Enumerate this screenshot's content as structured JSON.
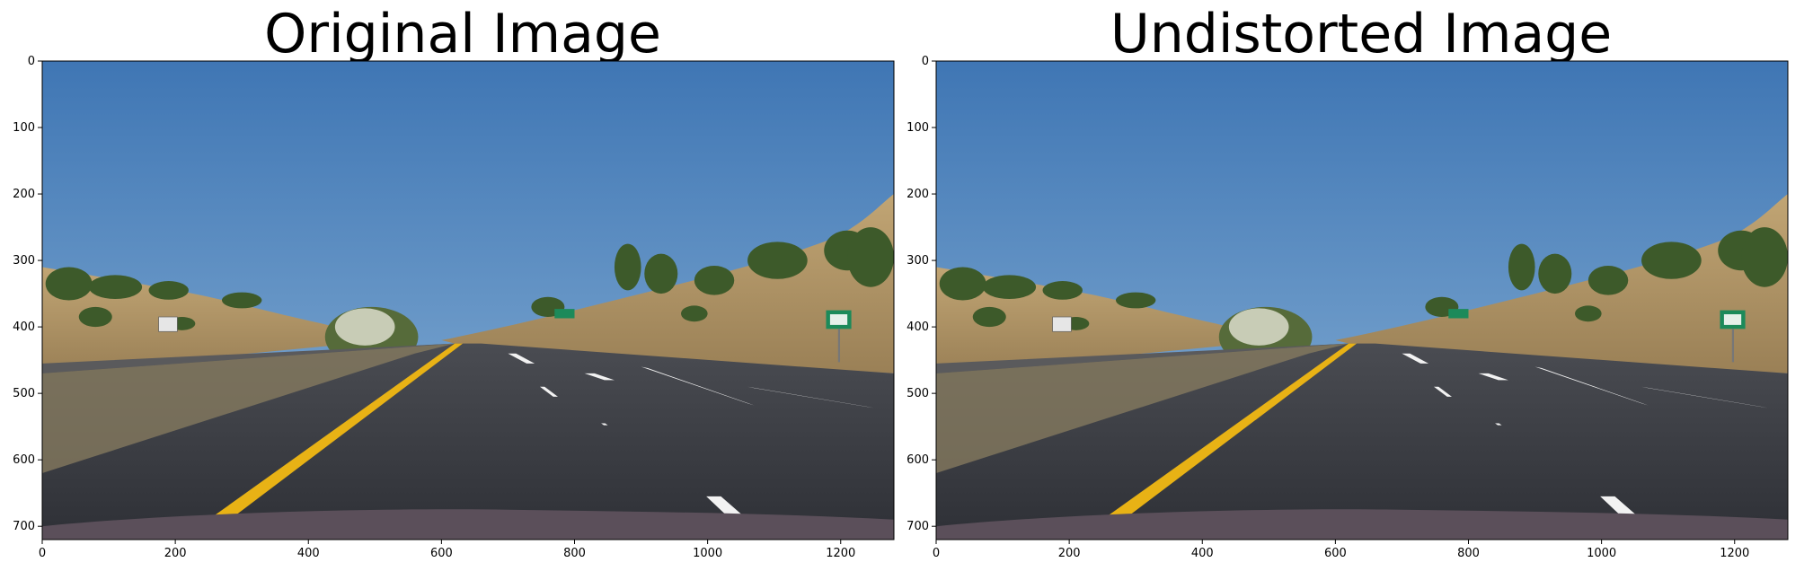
{
  "figure": {
    "panels": [
      {
        "title": "Original Image",
        "image_description_name": "road-photo-original",
        "x_ticks": [
          "0",
          "200",
          "400",
          "600",
          "800",
          "1000",
          "1200"
        ],
        "y_ticks": [
          "0",
          "100",
          "200",
          "300",
          "400",
          "500",
          "600",
          "700"
        ]
      },
      {
        "title": "Undistorted Image",
        "image_description_name": "road-photo-undistorted",
        "x_ticks": [
          "0",
          "200",
          "400",
          "600",
          "800",
          "1000",
          "1200"
        ],
        "y_ticks": [
          "0",
          "100",
          "200",
          "300",
          "400",
          "500",
          "600",
          "700"
        ]
      }
    ],
    "colors": {
      "sky_top": "#3f76b4",
      "sky_bottom": "#8ab2d6",
      "hill": "#b79a66",
      "road": "#3b3d44",
      "yellow_line": "#e8b215",
      "white_line": "#f2f2f2",
      "sign_green": "#1c8a5a",
      "tree": "#3d5a2a"
    },
    "image_extent": {
      "width": 1280,
      "height": 720
    }
  }
}
